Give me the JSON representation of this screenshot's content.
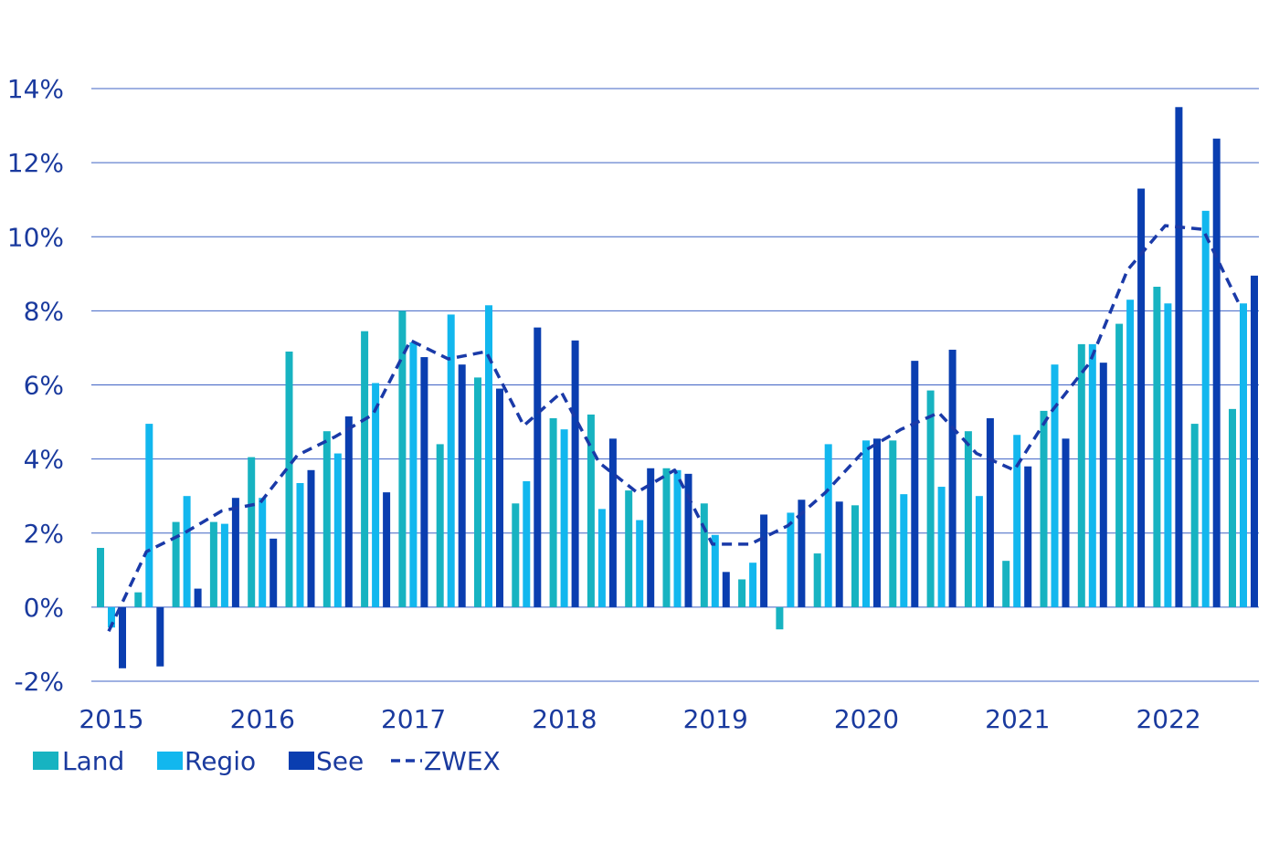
{
  "chart_data": {
    "type": "bar",
    "title": "",
    "xlabel": "",
    "ylabel": "",
    "ylim": [
      -2,
      14
    ],
    "y_ticks": [
      -2,
      0,
      2,
      4,
      6,
      8,
      10,
      12,
      14
    ],
    "y_tick_labels": [
      "-2%",
      "0%",
      "2%",
      "4%",
      "6%",
      "8%",
      "10%",
      "12%",
      "14%"
    ],
    "x_tick_labels": [
      "2015",
      "2016",
      "2017",
      "2018",
      "2019",
      "2020",
      "2021",
      "2022"
    ],
    "grid": "horizontal",
    "legend_position": "bottom-left",
    "quarters": [
      "2015 Q1",
      "2015 Q2",
      "2015 Q3",
      "2015 Q4",
      "2016 Q1",
      "2016 Q2",
      "2016 Q3",
      "2016 Q4",
      "2017 Q1",
      "2017 Q2",
      "2017 Q3",
      "2017 Q4",
      "2018 Q1",
      "2018 Q2",
      "2018 Q3",
      "2018 Q4",
      "2019 Q1",
      "2019 Q2",
      "2019 Q3",
      "2019 Q4",
      "2020 Q1",
      "2020 Q2",
      "2020 Q3",
      "2020 Q4",
      "2021 Q1",
      "2021 Q2",
      "2021 Q3",
      "2021 Q4",
      "2022 Q1",
      "2022 Q2",
      "2022 Q3"
    ],
    "series": [
      {
        "name": "Land",
        "kind": "bar",
        "color": "#17b3c1",
        "values": [
          1.6,
          0.4,
          2.3,
          2.3,
          4.05,
          6.9,
          4.75,
          7.45,
          8.0,
          4.4,
          6.2,
          2.8,
          5.1,
          5.2,
          3.15,
          3.75,
          2.8,
          0.75,
          -0.6,
          1.45,
          2.75,
          4.5,
          5.85,
          4.75,
          1.25,
          5.3,
          7.1,
          7.65,
          8.65,
          4.95,
          5.35
        ]
      },
      {
        "name": "Regio",
        "kind": "bar",
        "color": "#12b7ee",
        "values": [
          -0.55,
          4.95,
          3.0,
          2.25,
          2.95,
          3.35,
          4.15,
          6.05,
          7.15,
          7.9,
          8.15,
          3.4,
          4.8,
          2.65,
          2.35,
          3.7,
          1.95,
          1.2,
          2.55,
          4.4,
          4.5,
          3.05,
          3.25,
          3.0,
          4.65,
          6.55,
          7.1,
          8.3,
          8.2,
          10.7,
          8.2
        ]
      },
      {
        "name": "See",
        "kind": "bar",
        "color": "#0a3eb0",
        "values": [
          -1.65,
          -1.6,
          0.5,
          2.95,
          1.85,
          3.7,
          5.15,
          3.1,
          6.75,
          6.55,
          5.9,
          7.55,
          7.2,
          4.55,
          3.75,
          3.6,
          0.95,
          2.5,
          2.9,
          2.85,
          4.55,
          6.65,
          6.95,
          5.1,
          3.8,
          4.55,
          6.6,
          11.3,
          13.5,
          12.65,
          8.95
        ]
      },
      {
        "name": "ZWEX",
        "kind": "line",
        "style": "dashed",
        "color": "#1a3aa8",
        "values": [
          -0.65,
          1.5,
          2.0,
          2.6,
          2.8,
          4.1,
          4.6,
          5.2,
          7.2,
          6.7,
          6.9,
          4.9,
          5.8,
          3.9,
          3.1,
          3.7,
          1.7,
          1.7,
          2.2,
          3.1,
          4.2,
          4.8,
          5.25,
          4.15,
          3.7,
          5.3,
          6.6,
          9.1,
          10.3,
          10.2,
          8.1
        ]
      }
    ]
  }
}
